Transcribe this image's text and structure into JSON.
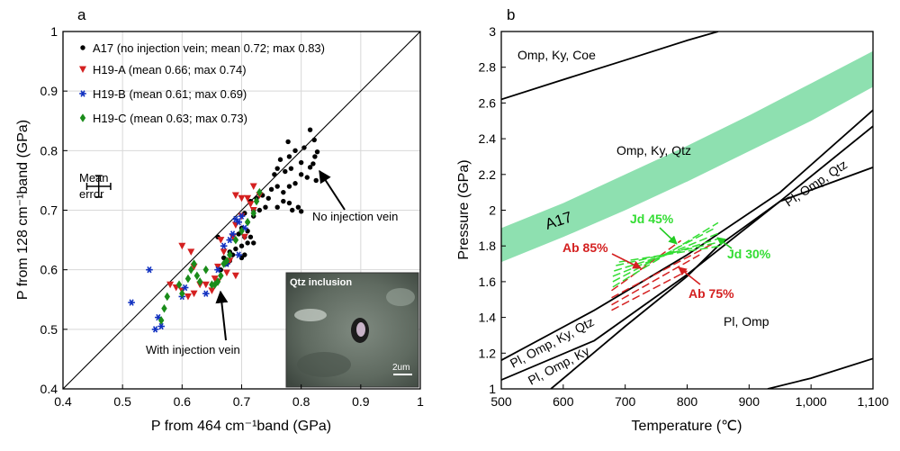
{
  "chart_data": [
    {
      "type": "scatter",
      "panel_label": "a",
      "xlabel": "P from 464 cm⁻¹band (GPa)",
      "ylabel": "P from 128 cm⁻¹band (GPa)",
      "xlim": [
        0.4,
        1.0
      ],
      "ylim": [
        0.4,
        1.0
      ],
      "xticks": [
        "0.4",
        "0.5",
        "0.6",
        "0.7",
        "0.8",
        "0.9",
        "1"
      ],
      "yticks": [
        "0.4",
        "0.5",
        "0.6",
        "0.7",
        "0.8",
        "0.9",
        "1"
      ],
      "grid": true,
      "legend": "top-left",
      "reference_line": "1:1",
      "series": [
        {
          "name": "A17 (no injection vein; mean 0.72; max 0.83)",
          "marker": "circle",
          "color": "#000000",
          "points": [
            [
              0.815,
              0.835
            ],
            [
              0.822,
              0.818
            ],
            [
              0.827,
              0.798
            ],
            [
              0.823,
              0.79
            ],
            [
              0.82,
              0.778
            ],
            [
              0.815,
              0.772
            ],
            [
              0.805,
              0.805
            ],
            [
              0.8,
              0.78
            ],
            [
              0.79,
              0.8
            ],
            [
              0.778,
              0.815
            ],
            [
              0.78,
              0.79
            ],
            [
              0.783,
              0.77
            ],
            [
              0.773,
              0.765
            ],
            [
              0.765,
              0.785
            ],
            [
              0.76,
              0.77
            ],
            [
              0.755,
              0.76
            ],
            [
              0.8,
              0.76
            ],
            [
              0.81,
              0.755
            ],
            [
              0.825,
              0.75
            ],
            [
              0.79,
              0.745
            ],
            [
              0.78,
              0.74
            ],
            [
              0.77,
              0.73
            ],
            [
              0.76,
              0.74
            ],
            [
              0.75,
              0.735
            ],
            [
              0.745,
              0.72
            ],
            [
              0.735,
              0.725
            ],
            [
              0.74,
              0.705
            ],
            [
              0.76,
              0.705
            ],
            [
              0.77,
              0.715
            ],
            [
              0.78,
              0.712
            ],
            [
              0.785,
              0.7
            ],
            [
              0.795,
              0.705
            ],
            [
              0.8,
              0.698
            ],
            [
              0.73,
              0.7
            ],
            [
              0.72,
              0.7
            ],
            [
              0.715,
              0.715
            ],
            [
              0.725,
              0.72
            ],
            [
              0.73,
              0.73
            ],
            [
              0.72,
              0.69
            ],
            [
              0.71,
              0.68
            ],
            [
              0.705,
              0.695
            ],
            [
              0.7,
              0.67
            ],
            [
              0.71,
              0.665
            ],
            [
              0.715,
              0.655
            ],
            [
              0.72,
              0.645
            ],
            [
              0.71,
              0.645
            ],
            [
              0.705,
              0.655
            ],
            [
              0.7,
              0.64
            ],
            [
              0.695,
              0.66
            ],
            [
              0.69,
              0.65
            ],
            [
              0.69,
              0.635
            ],
            [
              0.685,
              0.625
            ],
            [
              0.68,
              0.63
            ],
            [
              0.68,
              0.615
            ],
            [
              0.675,
              0.61
            ],
            [
              0.67,
              0.62
            ],
            [
              0.665,
              0.6
            ],
            [
              0.7,
              0.62
            ],
            [
              0.705,
              0.625
            ],
            [
              0.66,
              0.655
            ]
          ]
        },
        {
          "name": "H19-A (mean 0.66; max 0.74)",
          "marker": "triangle-down",
          "color": "#d42020",
          "points": [
            [
              0.72,
              0.74
            ],
            [
              0.73,
              0.725
            ],
            [
              0.7,
              0.72
            ],
            [
              0.69,
              0.725
            ],
            [
              0.71,
              0.72
            ],
            [
              0.715,
              0.71
            ],
            [
              0.7,
              0.69
            ],
            [
              0.72,
              0.7
            ],
            [
              0.69,
              0.675
            ],
            [
              0.685,
              0.655
            ],
            [
              0.665,
              0.65
            ],
            [
              0.67,
              0.63
            ],
            [
              0.68,
              0.615
            ],
            [
              0.66,
              0.605
            ],
            [
              0.675,
              0.595
            ],
            [
              0.69,
              0.59
            ],
            [
              0.66,
              0.58
            ],
            [
              0.655,
              0.585
            ],
            [
              0.64,
              0.575
            ],
            [
              0.65,
              0.565
            ],
            [
              0.63,
              0.575
            ],
            [
              0.62,
              0.56
            ],
            [
              0.61,
              0.555
            ],
            [
              0.6,
              0.565
            ],
            [
              0.59,
              0.57
            ],
            [
              0.58,
              0.575
            ],
            [
              0.6,
              0.64
            ],
            [
              0.615,
              0.63
            ],
            [
              0.62,
              0.605
            ],
            [
              0.705,
              0.655
            ]
          ]
        },
        {
          "name": "H19-B (mean 0.61; max 0.69)",
          "marker": "star",
          "color": "#1030c0",
          "points": [
            [
              0.515,
              0.545
            ],
            [
              0.545,
              0.6
            ],
            [
              0.56,
              0.52
            ],
            [
              0.555,
              0.5
            ],
            [
              0.565,
              0.505
            ],
            [
              0.6,
              0.555
            ],
            [
              0.605,
              0.57
            ],
            [
              0.66,
              0.6
            ],
            [
              0.675,
              0.61
            ],
            [
              0.68,
              0.65
            ],
            [
              0.685,
              0.66
            ],
            [
              0.69,
              0.685
            ],
            [
              0.695,
              0.68
            ],
            [
              0.7,
              0.69
            ],
            [
              0.705,
              0.67
            ],
            [
              0.695,
              0.625
            ],
            [
              0.64,
              0.56
            ],
            [
              0.67,
              0.64
            ]
          ]
        },
        {
          "name": "H19-C (mean 0.63; max 0.73)",
          "marker": "diamond",
          "color": "#1a8c1a",
          "points": [
            [
              0.565,
              0.515
            ],
            [
              0.57,
              0.535
            ],
            [
              0.575,
              0.555
            ],
            [
              0.595,
              0.575
            ],
            [
              0.6,
              0.56
            ],
            [
              0.61,
              0.585
            ],
            [
              0.615,
              0.6
            ],
            [
              0.625,
              0.59
            ],
            [
              0.63,
              0.58
            ],
            [
              0.64,
              0.6
            ],
            [
              0.65,
              0.575
            ],
            [
              0.655,
              0.575
            ],
            [
              0.66,
              0.58
            ],
            [
              0.665,
              0.59
            ],
            [
              0.67,
              0.61
            ],
            [
              0.675,
              0.615
            ],
            [
              0.69,
              0.65
            ],
            [
              0.7,
              0.665
            ],
            [
              0.71,
              0.68
            ],
            [
              0.72,
              0.695
            ],
            [
              0.725,
              0.715
            ],
            [
              0.73,
              0.73
            ],
            [
              0.62,
              0.61
            ],
            [
              0.68,
              0.625
            ]
          ]
        }
      ],
      "mean_error": {
        "label": "Mean error",
        "x": 0.46,
        "y": 0.74,
        "dx": 0.02,
        "dy": 0.018
      },
      "annotations": {
        "no_vein": "No injection vein",
        "with_vein": "With injection vein"
      },
      "inset": {
        "title": "Qtz inclusion",
        "scale_bar": "2um"
      }
    },
    {
      "type": "line",
      "panel_label": "b",
      "xlabel": "Temperature (℃)",
      "ylabel": "Pressure (GPa)",
      "xlim": [
        500,
        1100
      ],
      "ylim": [
        1,
        3
      ],
      "xticks": [
        "500",
        "600",
        "700",
        "800",
        "900",
        "1,000",
        "1,100"
      ],
      "yticks": [
        "1",
        "1.2",
        "1.4",
        "1.6",
        "1.8",
        "2",
        "2.2",
        "2.4",
        "2.6",
        "2.8",
        "3"
      ],
      "fields": [
        "Omp, Ky, Coe",
        "Omp, Ky, Qtz",
        "Pl, Omp, Qtz",
        "Pl, Omp",
        "Pl, Omp, Ky, Qtz",
        "Pl, Omp, Ky"
      ],
      "band": {
        "label": "A17",
        "color": "#8ee0b0",
        "lower": [
          [
            500,
            1.71
          ],
          [
            600,
            1.85
          ],
          [
            700,
            2.0
          ],
          [
            800,
            2.16
          ],
          [
            900,
            2.33
          ],
          [
            1000,
            2.5
          ],
          [
            1100,
            2.69
          ]
        ],
        "upper": [
          [
            500,
            1.9
          ],
          [
            600,
            2.04
          ],
          [
            700,
            2.2
          ],
          [
            800,
            2.36
          ],
          [
            900,
            2.53
          ],
          [
            1000,
            2.71
          ],
          [
            1100,
            2.89
          ]
        ]
      },
      "black_lines": [
        [
          [
            500,
            2.62
          ],
          [
            590,
            2.72
          ],
          [
            700,
            2.84
          ],
          [
            800,
            2.95
          ],
          [
            850,
            3.0
          ]
        ],
        [
          [
            500,
            1.16
          ],
          [
            650,
            1.44
          ],
          [
            800,
            1.75
          ],
          [
            950,
            2.1
          ],
          [
            1100,
            2.56
          ]
        ],
        [
          [
            500,
            1.05
          ],
          [
            650,
            1.27
          ],
          [
            800,
            1.64
          ],
          [
            950,
            2.05
          ],
          [
            1100,
            2.47
          ]
        ],
        [
          [
            580,
            1.0
          ],
          [
            700,
            1.35
          ],
          [
            800,
            1.63
          ],
          [
            850,
            1.8
          ]
        ],
        [
          [
            850,
            1.8
          ],
          [
            950,
            2.05
          ],
          [
            1100,
            2.24
          ]
        ],
        [
          [
            930,
            1.0
          ],
          [
            1000,
            1.06
          ],
          [
            1100,
            1.17
          ]
        ]
      ],
      "albite_label_a": "Ab 85%",
      "albite_label_b": "Ab 75%",
      "jadeite_label_a": "Jd 45%",
      "jadeite_label_b": "Jd 30%",
      "albite_color": "#d42020",
      "jadeite_color": "#33dd33",
      "albite_lines": [
        [
          [
            678,
            1.55
          ],
          [
            790,
            1.83
          ]
        ],
        [
          [
            678,
            1.51
          ],
          [
            840,
            1.81
          ]
        ],
        [
          [
            678,
            1.47
          ],
          [
            820,
            1.75
          ]
        ],
        [
          [
            678,
            1.44
          ],
          [
            800,
            1.66
          ]
        ]
      ],
      "jadeite_lines": [
        [
          [
            680,
            1.57
          ],
          [
            850,
            1.93
          ]
        ],
        [
          [
            680,
            1.6
          ],
          [
            845,
            1.9
          ]
        ],
        [
          [
            680,
            1.63
          ],
          [
            850,
            1.87
          ]
        ],
        [
          [
            682,
            1.66
          ],
          [
            850,
            1.84
          ]
        ],
        [
          [
            685,
            1.69
          ],
          [
            850,
            1.82
          ]
        ],
        [
          [
            690,
            1.71
          ],
          [
            855,
            1.8
          ]
        ]
      ]
    }
  ]
}
